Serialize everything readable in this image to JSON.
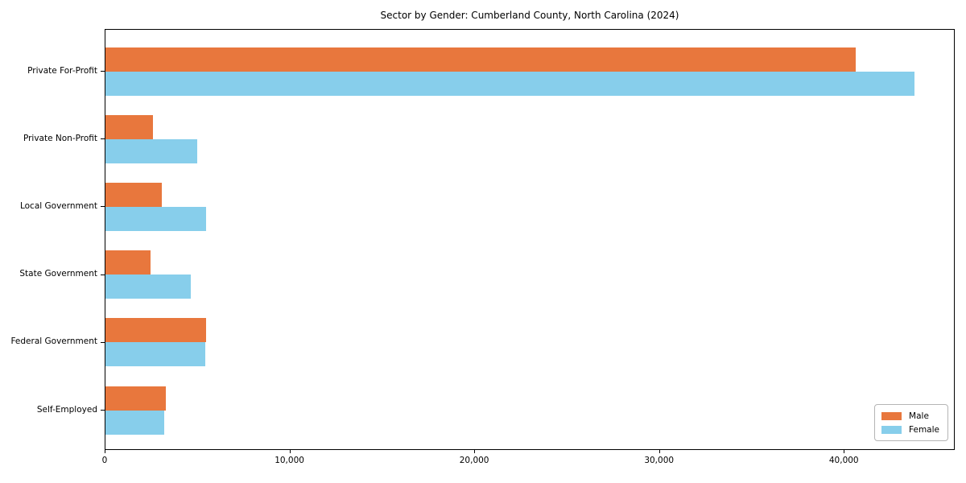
{
  "title": "Sector by Gender: Cumberland County, North Carolina (2024)",
  "chart_data": {
    "type": "bar",
    "orientation": "horizontal",
    "title": "Sector by Gender: Cumberland County, North Carolina (2024)",
    "categories": [
      "Private For-Profit",
      "Private Non-Profit",
      "Local Government",
      "State Government",
      "Federal Government",
      "Self-Employed"
    ],
    "series": [
      {
        "name": "Male",
        "color": "#e8773d",
        "values": [
          40600,
          2550,
          3050,
          2450,
          5450,
          3250
        ]
      },
      {
        "name": "Female",
        "color": "#87ceeb",
        "values": [
          43800,
          4950,
          5450,
          4600,
          5400,
          3200
        ]
      }
    ],
    "xlabel": "",
    "ylabel": "",
    "xlim": [
      0,
      46000
    ],
    "xticks": [
      0,
      10000,
      20000,
      30000,
      40000
    ],
    "xtick_labels": [
      "0",
      "10,000",
      "20,000",
      "30,000",
      "40,000"
    ],
    "legend_position": "lower right",
    "grid": false,
    "plot_border": "#000000",
    "background": "#ffffff"
  }
}
